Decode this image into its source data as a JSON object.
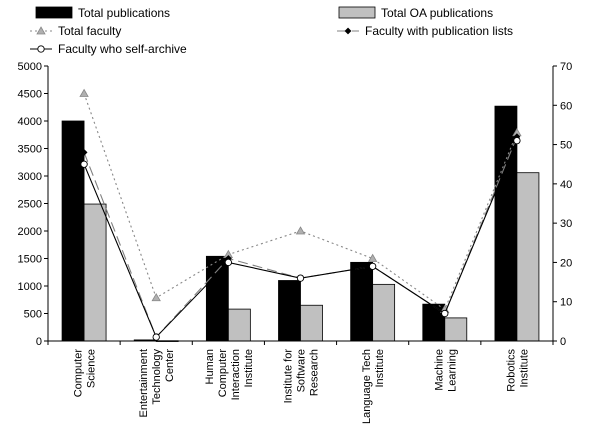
{
  "chart_data": {
    "type": "bar",
    "categories": [
      [
        "Computer",
        "Science"
      ],
      [
        "Entertainment",
        "Technology",
        "Center"
      ],
      [
        "Human",
        "Computer",
        "Interaction",
        "Institute"
      ],
      [
        "Institute for",
        "Software",
        "Research"
      ],
      [
        "Language Tech",
        "Institute"
      ],
      [
        "Machine",
        "Learning"
      ],
      [
        "Robotics",
        "Institute"
      ]
    ],
    "bar_series": [
      {
        "name": "Total publications",
        "color": "#000000",
        "values": [
          4000,
          20,
          1540,
          1100,
          1430,
          670,
          4270
        ]
      },
      {
        "name": "Total OA publications",
        "color": "#c0c0c0",
        "values": [
          2490,
          5,
          580,
          650,
          1030,
          420,
          3060
        ]
      }
    ],
    "line_series": [
      {
        "name": "Total faculty",
        "axis": "right",
        "color": "#888888",
        "dash": "2,3",
        "marker": "triangle",
        "values": [
          63,
          11,
          22,
          28,
          21,
          8,
          53
        ]
      },
      {
        "name": "Faculty with publication lists",
        "axis": "right",
        "color": "#808080",
        "dash": "10,5",
        "marker": "diamond",
        "values": [
          48,
          1,
          21,
          16,
          19,
          7,
          52
        ]
      },
      {
        "name": "Faculty who self-archive",
        "axis": "right",
        "color": "#000000",
        "dash": "",
        "marker": "circle",
        "values": [
          45,
          1,
          20,
          16,
          19,
          7,
          51
        ]
      }
    ],
    "y_left": {
      "min": 0,
      "max": 5000,
      "step": 500,
      "ticks": [
        "0",
        "500",
        "1000",
        "1500",
        "2000",
        "2500",
        "3000",
        "3500",
        "4000",
        "4500",
        "5000"
      ]
    },
    "y_right": {
      "min": 0,
      "max": 70,
      "step": 10,
      "ticks": [
        "0",
        "10",
        "20",
        "30",
        "40",
        "50",
        "60",
        "70"
      ]
    },
    "grid": false,
    "legend_position": "top"
  }
}
